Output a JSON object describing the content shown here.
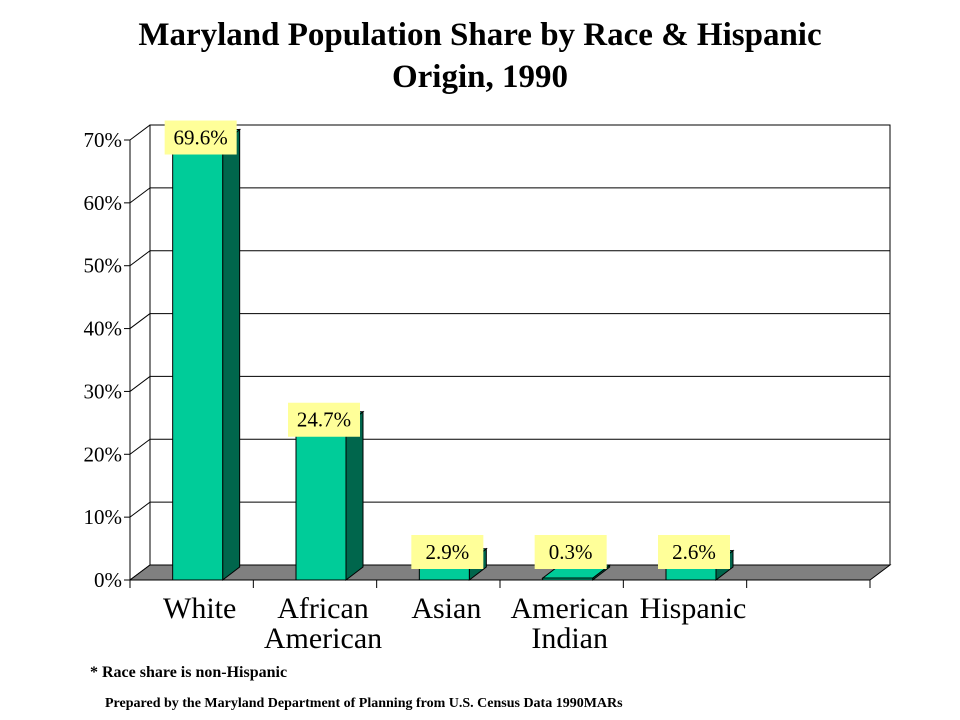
{
  "title_line1": "Maryland Population Share by Race & Hispanic",
  "title_line2": "Origin, 1990",
  "footnote": "* Race share is non-Hispanic",
  "source": "Prepared by the Maryland Department of Planning from U.S. Census Data 1990MARs",
  "colors": {
    "bar_front": "#00CC99",
    "bar_side": "#00664C",
    "floor": "#808080",
    "label_bg": "#FFFF99",
    "grid": "#000000"
  },
  "chart_data": {
    "type": "bar",
    "title": "Maryland Population Share by Race & Hispanic Origin, 1990",
    "categories": [
      [
        "White"
      ],
      [
        "African",
        "American"
      ],
      [
        "Asian"
      ],
      [
        "American",
        "Indian"
      ],
      [
        "Hispanic"
      ]
    ],
    "values": [
      69.6,
      24.7,
      2.9,
      0.3,
      2.6
    ],
    "data_labels": [
      "69.6%",
      "24.7%",
      "2.9%",
      "0.3%",
      "2.6%"
    ],
    "yticks": [
      "0%",
      "10%",
      "20%",
      "30%",
      "40%",
      "50%",
      "60%",
      "70%"
    ],
    "ylim": [
      0,
      70
    ],
    "grid": true,
    "style": "3d-column"
  }
}
